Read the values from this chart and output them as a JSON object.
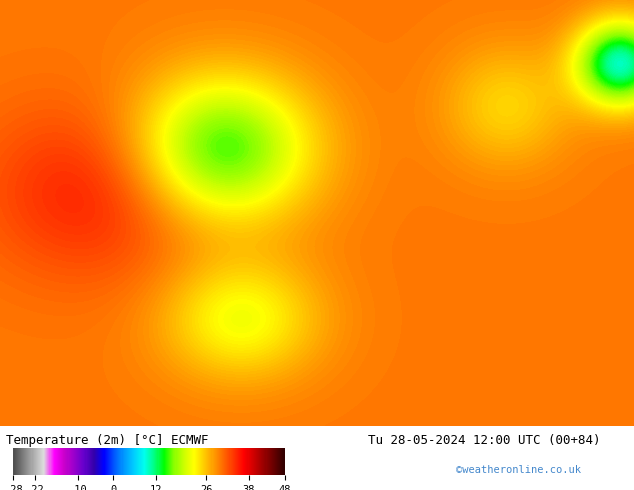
{
  "title_left": "Temperature (2m) [°C] ECMWF",
  "title_right": "Tu 28-05-2024 12:00 UTC (00+84)",
  "credit": "©weatheronline.co.uk",
  "colorbar_ticks": [
    -28,
    -22,
    -10,
    0,
    12,
    26,
    38,
    48
  ],
  "colorbar_colors": [
    "#606060",
    "#888888",
    "#aaaaaa",
    "#cccccc",
    "#ee82ee",
    "#da70d6",
    "#9400d3",
    "#4b0082",
    "#0000cd",
    "#1e90ff",
    "#00bfff",
    "#00ced1",
    "#00fa9a",
    "#00ff00",
    "#7cfc00",
    "#adff2f",
    "#ffff00",
    "#ffd700",
    "#ffa500",
    "#ff8c00",
    "#ff4500",
    "#ff0000",
    "#dc143c",
    "#b22222",
    "#8b0000",
    "#4d0000"
  ],
  "colorbar_vmin": -28,
  "colorbar_vmax": 48,
  "fig_width": 6.34,
  "fig_height": 4.9,
  "dpi": 100,
  "map_background": "#ffcc00",
  "label_fontsize": 9,
  "credit_color": "#4488cc"
}
